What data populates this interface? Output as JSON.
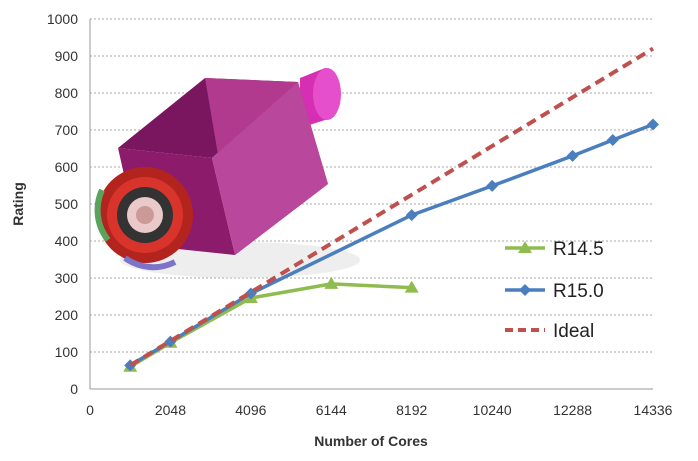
{
  "chart_data": {
    "type": "line",
    "title": "",
    "xlabel": "Number of Cores",
    "ylabel": "Rating",
    "xlim": [
      0,
      14336
    ],
    "ylim": [
      0,
      1000
    ],
    "xticks": [
      0,
      2048,
      4096,
      6144,
      8192,
      10240,
      12288,
      14336
    ],
    "yticks": [
      0,
      100,
      200,
      300,
      400,
      500,
      600,
      700,
      800,
      900,
      1000
    ],
    "grid": "horizontal dotted",
    "legend_position": "right-middle",
    "series": [
      {
        "name": "R14.5",
        "color": "#8fbc4f",
        "marker": "triangle",
        "dash": false,
        "points": [
          [
            1024,
            60
          ],
          [
            2048,
            125
          ],
          [
            4096,
            246
          ],
          [
            6144,
            284
          ],
          [
            8192,
            274
          ]
        ]
      },
      {
        "name": "R15.0",
        "color": "#4a7ebf",
        "marker": "diamond",
        "dash": false,
        "points": [
          [
            1024,
            64
          ],
          [
            2048,
            128
          ],
          [
            4096,
            258
          ],
          [
            8192,
            470
          ],
          [
            10240,
            549
          ],
          [
            12288,
            630
          ],
          [
            13312,
            673
          ],
          [
            14336,
            715
          ]
        ]
      },
      {
        "name": "Ideal",
        "color": "#c0504d",
        "marker": "none",
        "dash": true,
        "points": [
          [
            1024,
            64
          ],
          [
            14336,
            920
          ]
        ]
      }
    ]
  }
}
